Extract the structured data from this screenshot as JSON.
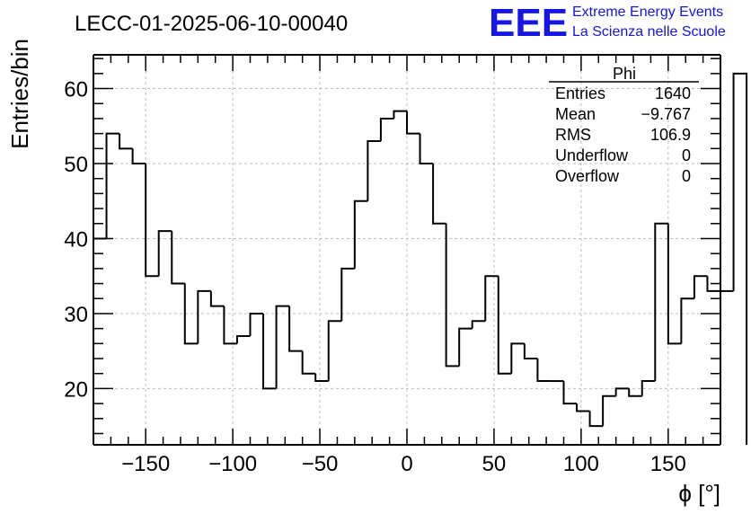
{
  "chart_data": {
    "type": "histogram-step",
    "title": "LECC-01-2025-06-10-00040",
    "xlabel": "ϕ [°]",
    "ylabel": "Entries/bin",
    "xlim": [
      -180,
      180
    ],
    "ylim": [
      12.5,
      64.5
    ],
    "xticks": [
      -150,
      -100,
      -50,
      0,
      50,
      100,
      150
    ],
    "xtick_labels": [
      "−150",
      "−100",
      "−50",
      "0",
      "50",
      "100",
      "150"
    ],
    "yticks": [
      20,
      30,
      40,
      50,
      60
    ],
    "ytick_labels": [
      "20",
      "30",
      "40",
      "50",
      "60"
    ],
    "grid": true,
    "bin_edges_start": -180,
    "bin_width": 7.5,
    "values": [
      40,
      54,
      52,
      50,
      35,
      41,
      34,
      26,
      33,
      31,
      26,
      27,
      30,
      20,
      31,
      25,
      22,
      21,
      29,
      36,
      45,
      53,
      56,
      57,
      54,
      50,
      42,
      23,
      28,
      29,
      35,
      22,
      26,
      24,
      21,
      21,
      18,
      17,
      15,
      19,
      20,
      19,
      21,
      42,
      26,
      32,
      35,
      33,
      33,
      62
    ],
    "stats": {
      "title": "Phi",
      "rows": [
        {
          "label": "Entries",
          "value": "1640"
        },
        {
          "label": "Mean",
          "value": "−9.767"
        },
        {
          "label": "RMS",
          "value": "106.9"
        },
        {
          "label": "Underflow",
          "value": "0"
        },
        {
          "label": "Overflow",
          "value": "0"
        }
      ]
    }
  },
  "logo": {
    "mark": "EEE",
    "line1": "Extreme Energy Events",
    "line2": "La Scienza nelle Scuole",
    "color": "#1515e6"
  }
}
